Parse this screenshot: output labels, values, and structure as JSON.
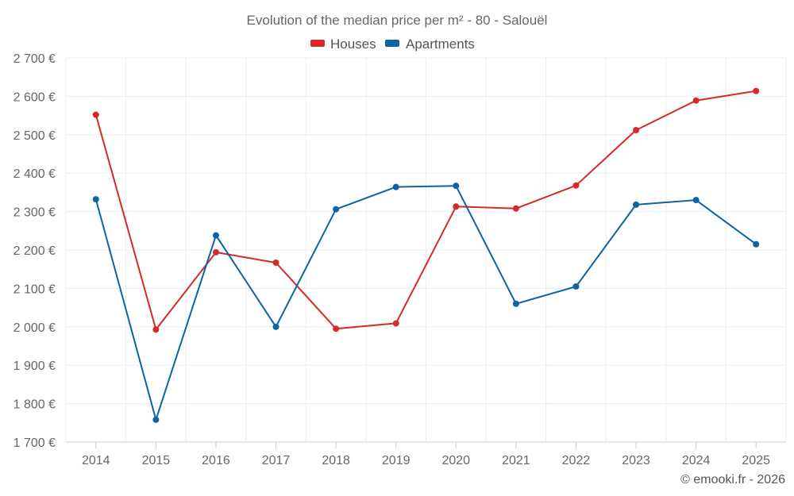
{
  "chart_data": {
    "type": "line",
    "title": "Evolution of the median price per m² - 80 - Salouël",
    "categories": [
      "2014",
      "2015",
      "2016",
      "2017",
      "2018",
      "2019",
      "2020",
      "2021",
      "2022",
      "2023",
      "2024",
      "2025"
    ],
    "series": [
      {
        "name": "Houses",
        "color": "#d42a2a",
        "values": [
          2552,
          1993,
          2194,
          2167,
          1995,
          2009,
          2313,
          2308,
          2368,
          2512,
          2589,
          2614
        ]
      },
      {
        "name": "Apartments",
        "color": "#0c64a0",
        "values": [
          2332,
          1758,
          2238,
          2000,
          2306,
          2364,
          2367,
          2060,
          2105,
          2318,
          2330,
          2215
        ]
      }
    ],
    "ylim": [
      1700,
      2700
    ],
    "yticks": [
      1700,
      1800,
      1900,
      2000,
      2100,
      2200,
      2300,
      2400,
      2500,
      2600,
      2700
    ],
    "ytick_labels": [
      "1 700 €",
      "1 800 €",
      "1 900 €",
      "2 000 €",
      "2 100 €",
      "2 200 €",
      "2 300 €",
      "2 400 €",
      "2 500 €",
      "2 600 €",
      "2 700 €"
    ],
    "xlabel": "",
    "ylabel": "",
    "grid": true,
    "legend_position": "top-center"
  },
  "credit": "© emooki.fr - 2026"
}
